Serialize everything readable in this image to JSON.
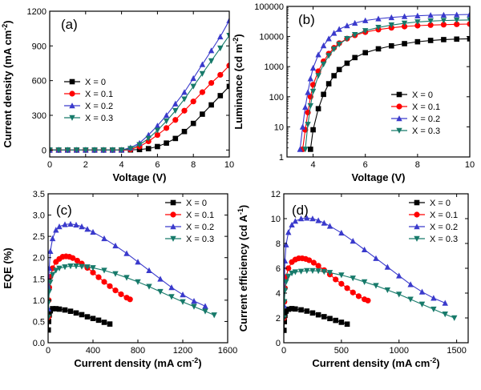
{
  "chart_data": [
    {
      "panel": "(a)",
      "type": "line",
      "xlabel": "Voltage (V)",
      "ylabel": "Current density (mA cm⁻²)",
      "xlim": [
        0,
        10
      ],
      "ylim": [
        -60,
        1200
      ],
      "xticks": [
        0,
        2,
        4,
        6,
        8,
        10
      ],
      "yticks": [
        0,
        300,
        600,
        900,
        1200
      ],
      "legend_position": "center-left",
      "series": [
        {
          "name": "X = 0",
          "color": "#000000",
          "marker": "square",
          "x": [
            0,
            0.5,
            1,
            1.5,
            2,
            2.5,
            3,
            3.5,
            4,
            4.5,
            5,
            5.5,
            6,
            6.5,
            7,
            7.5,
            8,
            8.5,
            9,
            9.5,
            10
          ],
          "y": [
            0,
            0,
            0,
            0,
            0,
            0,
            0,
            0,
            0,
            1,
            4,
            12,
            30,
            60,
            100,
            160,
            230,
            310,
            390,
            470,
            550
          ]
        },
        {
          "name": "X = 0.1",
          "color": "#ff0000",
          "marker": "circle",
          "x": [
            0,
            0.5,
            1,
            1.5,
            2,
            2.5,
            3,
            3.5,
            4,
            4.5,
            5,
            5.5,
            6,
            6.5,
            7,
            7.5,
            8,
            8.5,
            9,
            9.5,
            10
          ],
          "y": [
            0,
            0,
            0,
            0,
            0,
            0,
            0,
            0,
            0,
            5,
            30,
            75,
            130,
            190,
            260,
            340,
            420,
            500,
            580,
            650,
            730
          ]
        },
        {
          "name": "X = 0.2",
          "color": "#3a3acc",
          "marker": "triangle-up",
          "x": [
            0,
            0.5,
            1,
            1.5,
            2,
            2.5,
            3,
            3.5,
            4,
            4.5,
            5,
            5.5,
            6,
            6.5,
            7,
            7.5,
            8,
            8.5,
            9,
            9.5,
            10
          ],
          "y": [
            0,
            0,
            0,
            0,
            0,
            0,
            0,
            0,
            0,
            20,
            60,
            130,
            210,
            300,
            400,
            500,
            620,
            740,
            860,
            980,
            1120
          ]
        },
        {
          "name": "X = 0.3",
          "color": "#177a6a",
          "marker": "triangle-down",
          "x": [
            0,
            0.5,
            1,
            1.5,
            2,
            2.5,
            3,
            3.5,
            4,
            4.5,
            5,
            5.5,
            6,
            6.5,
            7,
            7.5,
            8,
            8.5,
            9,
            9.5,
            10
          ],
          "y": [
            0,
            0,
            0,
            0,
            0,
            0,
            0,
            0,
            0,
            12,
            45,
            100,
            170,
            250,
            340,
            440,
            550,
            660,
            770,
            880,
            990
          ]
        }
      ]
    },
    {
      "panel": "(b)",
      "type": "line",
      "xlabel": "Voltage (V)",
      "ylabel": "Luminance (cd m⁻²)",
      "xlim": [
        3,
        10
      ],
      "ylim": [
        1,
        100000
      ],
      "yscale": "log",
      "xticks": [
        4,
        6,
        8,
        10
      ],
      "yticks": [
        "1",
        "10",
        "100",
        "1000",
        "10000",
        "100000"
      ],
      "legend_position": "bottom-right",
      "series": [
        {
          "name": "X = 0",
          "color": "#000000",
          "marker": "square",
          "x": [
            3.9,
            4,
            4.2,
            4.4,
            4.6,
            4.8,
            5,
            5.3,
            5.6,
            6,
            6.5,
            7,
            7.5,
            8,
            8.5,
            9,
            9.5,
            10
          ],
          "y": [
            1.8,
            8,
            40,
            120,
            270,
            500,
            800,
            1300,
            2000,
            2900,
            3900,
            4900,
            5800,
            6700,
            7400,
            7900,
            8200,
            8400
          ]
        },
        {
          "name": "X = 0.1",
          "color": "#ff0000",
          "marker": "circle",
          "x": [
            3.6,
            3.7,
            3.8,
            3.9,
            4,
            4.2,
            4.4,
            4.6,
            4.8,
            5,
            5.3,
            5.6,
            6,
            6.5,
            7,
            7.5,
            8,
            8.5,
            9,
            9.5,
            10
          ],
          "y": [
            1.8,
            8,
            30,
            100,
            250,
            700,
            1500,
            2700,
            4200,
            6000,
            8500,
            11000,
            14000,
            17000,
            19500,
            21500,
            23000,
            24000,
            24800,
            25500,
            26000
          ]
        },
        {
          "name": "X = 0.2",
          "color": "#3a3acc",
          "marker": "triangle-up",
          "x": [
            3.5,
            3.6,
            3.7,
            3.8,
            3.9,
            4,
            4.2,
            4.4,
            4.6,
            4.8,
            5,
            5.3,
            5.6,
            6,
            6.5,
            7,
            7.5,
            8,
            8.5,
            9,
            9.5,
            10
          ],
          "y": [
            1.8,
            10,
            45,
            140,
            400,
            900,
            2500,
            5000,
            8500,
            13000,
            17500,
            23000,
            28000,
            34000,
            39000,
            43000,
            46500,
            49000,
            51000,
            52000,
            53000,
            54000
          ]
        },
        {
          "name": "X = 0.3",
          "color": "#177a6a",
          "marker": "triangle-down",
          "x": [
            3.7,
            3.8,
            3.9,
            4,
            4.2,
            4.4,
            4.6,
            4.8,
            5,
            5.3,
            5.6,
            6,
            6.5,
            7,
            7.5,
            8,
            8.5,
            9,
            9.5,
            10
          ],
          "y": [
            1.8,
            12,
            50,
            150,
            500,
            1200,
            2300,
            3800,
            5500,
            8500,
            11500,
            15500,
            20000,
            24000,
            27500,
            30500,
            32500,
            34000,
            35000,
            35500
          ]
        }
      ]
    },
    {
      "panel": "(c)",
      "type": "line",
      "xlabel": "Current density (mA cm⁻²)",
      "ylabel": "EQE (%)",
      "xlim": [
        0,
        1600
      ],
      "ylim": [
        0,
        3.5
      ],
      "xticks": [
        0,
        400,
        800,
        1200,
        1600
      ],
      "yticks": [
        "0.0",
        "0.5",
        "1.0",
        "1.5",
        "2.0",
        "2.5",
        "3.0",
        "3.5"
      ],
      "legend_position": "top-right",
      "series": [
        {
          "name": "X = 0",
          "color": "#000000",
          "marker": "square",
          "x": [
            2,
            5,
            10,
            20,
            40,
            70,
            100,
            150,
            200,
            250,
            300,
            350,
            400,
            450,
            500,
            550
          ],
          "y": [
            0.3,
            0.5,
            0.65,
            0.75,
            0.8,
            0.8,
            0.79,
            0.77,
            0.74,
            0.7,
            0.66,
            0.61,
            0.57,
            0.53,
            0.48,
            0.44
          ]
        },
        {
          "name": "X = 0.1",
          "color": "#ff0000",
          "marker": "circle",
          "x": [
            2,
            5,
            10,
            20,
            40,
            70,
            100,
            130,
            160,
            190,
            220,
            260,
            300,
            350,
            400,
            450,
            500,
            550,
            600,
            650,
            700,
            730
          ],
          "y": [
            0.6,
            1.0,
            1.3,
            1.55,
            1.75,
            1.9,
            1.97,
            2.02,
            2.03,
            2.02,
            1.99,
            1.93,
            1.86,
            1.76,
            1.65,
            1.54,
            1.43,
            1.33,
            1.23,
            1.14,
            1.06,
            1.02
          ]
        },
        {
          "name": "X = 0.2",
          "color": "#3a3acc",
          "marker": "triangle-up",
          "x": [
            2,
            5,
            10,
            20,
            40,
            70,
            100,
            150,
            200,
            250,
            300,
            350,
            400,
            500,
            600,
            700,
            800,
            900,
            1000,
            1100,
            1200,
            1300,
            1400
          ],
          "y": [
            0.8,
            1.3,
            1.75,
            2.15,
            2.45,
            2.65,
            2.73,
            2.78,
            2.79,
            2.77,
            2.73,
            2.67,
            2.6,
            2.45,
            2.28,
            2.1,
            1.9,
            1.7,
            1.5,
            1.3,
            1.13,
            0.98,
            0.86
          ]
        },
        {
          "name": "X = 0.3",
          "color": "#177a6a",
          "marker": "triangle-down",
          "x": [
            2,
            5,
            10,
            20,
            40,
            70,
            100,
            150,
            200,
            250,
            300,
            350,
            400,
            500,
            600,
            700,
            800,
            900,
            1000,
            1100,
            1200,
            1300,
            1400,
            1480
          ],
          "y": [
            0.6,
            0.95,
            1.2,
            1.42,
            1.6,
            1.7,
            1.75,
            1.78,
            1.8,
            1.8,
            1.79,
            1.78,
            1.76,
            1.7,
            1.62,
            1.53,
            1.43,
            1.32,
            1.2,
            1.08,
            0.96,
            0.85,
            0.74,
            0.65
          ]
        }
      ]
    },
    {
      "panel": "(d)",
      "type": "line",
      "xlabel": "Current density (mA cm⁻²)",
      "ylabel": "Current efficiency (cd A⁻¹)",
      "xlim": [
        0,
        1600
      ],
      "ylim": [
        0,
        12
      ],
      "xticks": [
        0,
        500,
        1000,
        1500
      ],
      "yticks": [
        0,
        2,
        4,
        6,
        8,
        10,
        12
      ],
      "legend_position": "top-right",
      "series": [
        {
          "name": "X = 0",
          "color": "#000000",
          "marker": "square",
          "x": [
            2,
            5,
            10,
            20,
            40,
            70,
            100,
            150,
            200,
            250,
            300,
            350,
            400,
            450,
            500,
            550
          ],
          "y": [
            1.0,
            1.7,
            2.2,
            2.55,
            2.7,
            2.75,
            2.72,
            2.65,
            2.55,
            2.4,
            2.25,
            2.1,
            1.95,
            1.8,
            1.65,
            1.5
          ]
        },
        {
          "name": "X = 0.1",
          "color": "#ff0000",
          "marker": "circle",
          "x": [
            2,
            5,
            10,
            20,
            40,
            70,
            100,
            130,
            160,
            190,
            220,
            260,
            300,
            350,
            400,
            450,
            500,
            550,
            600,
            650,
            700,
            730
          ],
          "y": [
            2.0,
            3.3,
            4.4,
            5.3,
            6.0,
            6.5,
            6.7,
            6.8,
            6.8,
            6.75,
            6.65,
            6.45,
            6.2,
            5.85,
            5.5,
            5.1,
            4.75,
            4.4,
            4.05,
            3.75,
            3.5,
            3.4
          ]
        },
        {
          "name": "X = 0.2",
          "color": "#3a3acc",
          "marker": "triangle-up",
          "x": [
            2,
            5,
            10,
            20,
            40,
            70,
            100,
            150,
            200,
            250,
            300,
            350,
            400,
            500,
            600,
            700,
            800,
            900,
            1000,
            1100,
            1200,
            1300,
            1400
          ],
          "y": [
            3.0,
            5.0,
            6.6,
            7.9,
            8.9,
            9.5,
            9.8,
            10.0,
            10.05,
            10.0,
            9.85,
            9.65,
            9.4,
            8.85,
            8.2,
            7.5,
            6.8,
            6.1,
            5.4,
            4.7,
            4.1,
            3.6,
            3.2
          ]
        },
        {
          "name": "X = 0.3",
          "color": "#177a6a",
          "marker": "triangle-down",
          "x": [
            2,
            5,
            10,
            20,
            40,
            70,
            100,
            150,
            200,
            250,
            300,
            350,
            400,
            500,
            600,
            700,
            800,
            900,
            1000,
            1100,
            1200,
            1300,
            1400,
            1480
          ],
          "y": [
            2.0,
            3.3,
            4.2,
            4.9,
            5.35,
            5.6,
            5.7,
            5.75,
            5.8,
            5.8,
            5.78,
            5.72,
            5.65,
            5.45,
            5.2,
            4.9,
            4.6,
            4.25,
            3.9,
            3.5,
            3.1,
            2.7,
            2.3,
            2.0
          ]
        }
      ]
    }
  ]
}
